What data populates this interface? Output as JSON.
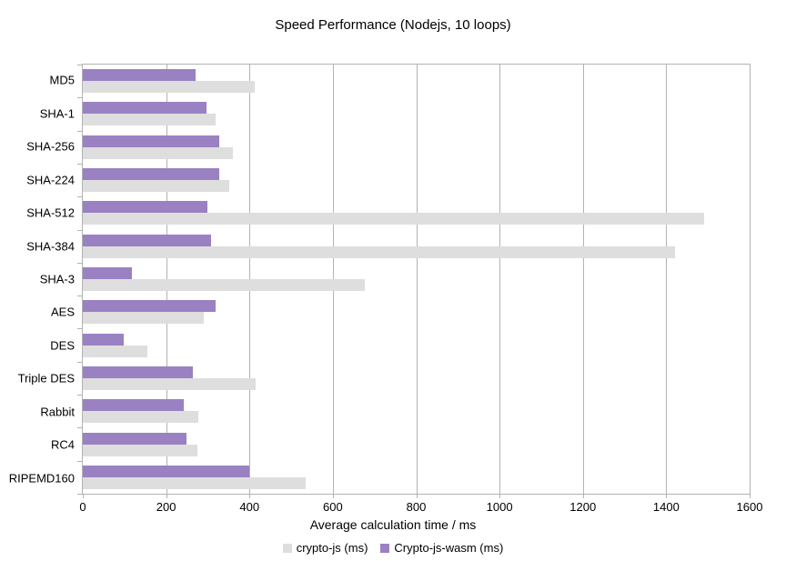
{
  "title": "Speed Performance (Nodejs, 10 loops)",
  "x_axis_title": "Average calculation time / ms",
  "colors": {
    "crypto_js": "#dedede",
    "crypto_js_wasm": "#9a81c2",
    "axis": "#b3b3b3",
    "text": "#000000",
    "background": "#ffffff"
  },
  "chart_data": {
    "type": "bar",
    "orientation": "horizontal",
    "title": "Speed Performance (Nodejs, 10 loops)",
    "xlabel": "Average calculation time / ms",
    "ylabel": "",
    "xlim": [
      0,
      1600
    ],
    "x_ticks": [
      0,
      200,
      400,
      600,
      800,
      1000,
      1200,
      1400,
      1600
    ],
    "grid": true,
    "legend_position": "bottom",
    "categories": [
      "MD5",
      "SHA-1",
      "SHA-256",
      "SHA-224",
      "SHA-512",
      "SHA-384",
      "SHA-3",
      "AES",
      "DES",
      "Triple DES",
      "Rabbit",
      "RC4",
      "RIPEMD160"
    ],
    "series": [
      {
        "name": "crypto-js (ms)",
        "color": "#dedede",
        "values": [
          413,
          319,
          360,
          352,
          1490,
          1422,
          676,
          291,
          155,
          415,
          278,
          275,
          535
        ]
      },
      {
        "name": "Crypto-js-wasm (ms)",
        "color": "#9a81c2",
        "values": [
          270,
          296,
          328,
          328,
          299,
          307,
          117,
          318,
          99,
          265,
          243,
          249,
          400
        ]
      }
    ]
  }
}
